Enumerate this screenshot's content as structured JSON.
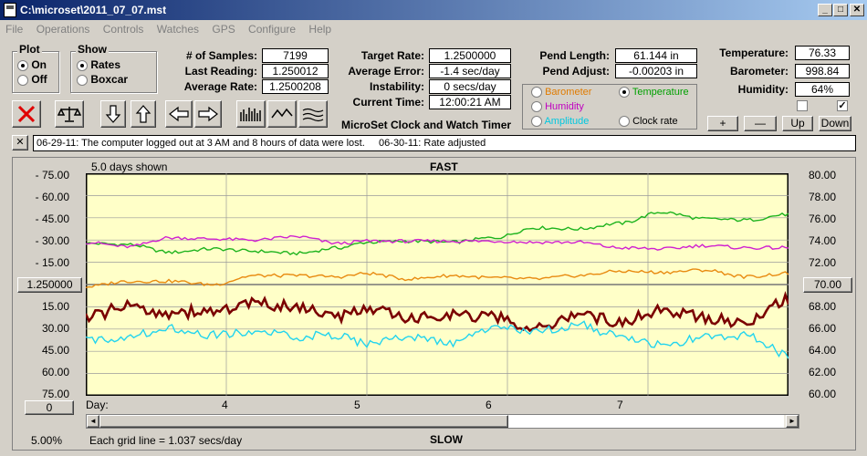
{
  "window": {
    "title": "C:\\microset\\2011_07_07.mst",
    "min_glyph": "_",
    "max_glyph": "□",
    "close_glyph": "✕"
  },
  "menu": [
    "File",
    "Operations",
    "Controls",
    "Watches",
    "GPS",
    "Configure",
    "Help"
  ],
  "plot_group": {
    "title": "Plot",
    "options": [
      "On",
      "Off"
    ],
    "selected": "On"
  },
  "show_group": {
    "title": "Show",
    "options": [
      "Rates",
      "Boxcar"
    ],
    "selected": "Rates"
  },
  "stats": {
    "samples_label": "# of Samples:",
    "samples": "7199",
    "last_reading_label": "Last Reading:",
    "last_reading": "1.250012",
    "average_rate_label": "Average Rate:",
    "average_rate": "1.2500208"
  },
  "rates": {
    "target_rate_label": "Target Rate:",
    "target_rate": "1.2500000",
    "average_error_label": "Average Error:",
    "average_error": "-1.4 sec/day",
    "instability_label": "Instability:",
    "instability": "0 secs/day",
    "current_time_label": "Current Time:",
    "current_time": "12:00:21 AM"
  },
  "program_title": "MicroSet Clock and Watch Timer",
  "pendulum": {
    "length_label": "Pend Length:",
    "length": "61.144 in",
    "adjust_label": "Pend Adjust:",
    "adjust": "-0.00203 in"
  },
  "sensor_options": [
    {
      "label": "Barometer",
      "color": "#e07b00",
      "checked": false
    },
    {
      "label": "Temperature",
      "color": "#00a000",
      "checked": true
    },
    {
      "label": "Humidity",
      "color": "#c000c0",
      "checked": false
    },
    {
      "label": "Amplitude",
      "color": "#00c8e0",
      "checked": false
    },
    {
      "label": "Clock rate",
      "color": "#000000",
      "checked": false
    }
  ],
  "environment": {
    "temperature_label": "Temperature:",
    "temperature": "76.33",
    "barometer_label": "Barometer:",
    "barometer": "998.84",
    "humidity_label": "Humidity:",
    "humidity": "64%"
  },
  "scale_buttons": {
    "plus": "+",
    "minus": "—",
    "up": "Up",
    "down": "Down"
  },
  "notes_close": "✕",
  "notes": "06-29-11: The computer logged out at 3 AM and 8 hours of data were lost.     06-30-11: Rate adjusted",
  "chart_header": {
    "days_shown": "5.0 days shown",
    "fast": "FAST",
    "slow": "SLOW"
  },
  "left_axis_top": [
    "- 75.00",
    "- 60.00",
    "- 45.00",
    "- 30.00",
    "- 15.00"
  ],
  "left_axis_bottom": [
    "15.00",
    "30.00",
    "45.00",
    "60.00",
    "75.00"
  ],
  "center_value_button": "1.250000",
  "zero_button": "0",
  "right_axis": [
    "80.00",
    "78.00",
    "76.00",
    "74.00",
    "72.00",
    "70.00",
    "68.00",
    "66.00",
    "64.00",
    "62.00",
    "60.00"
  ],
  "right_center_button": "70.00",
  "day_axis": {
    "label": "Day:",
    "ticks": [
      "4",
      "5",
      "6",
      "7"
    ]
  },
  "footer": {
    "zoom": "5.00%",
    "grid_note": "Each grid line = 1.037 secs/day"
  },
  "scroll": {
    "left": "◄",
    "right": "►",
    "position": 0.74
  },
  "colors": {
    "plot_bg": "#ffffc8",
    "temperature": "#1db31d",
    "humidity": "#d020d0",
    "barometer": "#e88a10",
    "rate": "#7a0000",
    "amplitude": "#22d4ee",
    "grid": "#9a9a9a"
  },
  "chart_data": {
    "type": "line",
    "x_label": "Day:",
    "x_range": [
      3.0,
      8.0
    ],
    "x_ticks": [
      4,
      5,
      6,
      7
    ],
    "left_axis_range": [
      -75,
      75
    ],
    "left_axis_center_label": "1.250000",
    "right_axis_range": [
      60,
      80
    ],
    "right_axis_center_label": "70.00",
    "series": [
      {
        "name": "Temperature",
        "axis": "right",
        "x": [
          3.0,
          3.3,
          3.6,
          3.9,
          4.2,
          4.5,
          4.8,
          5.0,
          5.3,
          5.6,
          5.9,
          6.2,
          6.5,
          6.8,
          7.1,
          7.4,
          7.7,
          8.0
        ],
        "values": [
          73.7,
          73.6,
          72.9,
          73.2,
          73.0,
          72.8,
          73.3,
          73.8,
          73.9,
          73.8,
          74.2,
          75.1,
          75.0,
          75.5,
          76.5,
          75.9,
          75.8,
          76.3
        ]
      },
      {
        "name": "Humidity",
        "axis": "right",
        "x": [
          3.0,
          3.3,
          3.6,
          3.9,
          4.2,
          4.5,
          4.8,
          5.0,
          5.3,
          5.6,
          5.9,
          6.2,
          6.5,
          6.8,
          7.1,
          7.4,
          7.7,
          8.0
        ],
        "values": [
          73.8,
          73.4,
          74.2,
          74.1,
          74.0,
          74.3,
          73.7,
          73.9,
          73.9,
          73.9,
          73.9,
          73.8,
          73.8,
          73.3,
          73.2,
          73.5,
          73.3,
          73.3
        ]
      },
      {
        "name": "Barometer",
        "axis": "right",
        "x": [
          3.0,
          3.3,
          3.6,
          3.9,
          4.2,
          4.5,
          4.8,
          5.0,
          5.3,
          5.6,
          5.9,
          6.2,
          6.5,
          6.8,
          7.1,
          7.4,
          7.7,
          8.0
        ],
        "values": [
          69.8,
          70.3,
          70.3,
          70.0,
          70.8,
          70.8,
          70.7,
          71.0,
          70.5,
          70.8,
          70.6,
          70.5,
          70.8,
          71.2,
          71.1,
          71.3,
          70.7,
          71.0
        ]
      },
      {
        "name": "Clock rate",
        "axis": "left",
        "x": [
          3.0,
          3.3,
          3.6,
          3.9,
          4.2,
          4.5,
          4.8,
          5.0,
          5.3,
          5.6,
          5.9,
          6.2,
          6.5,
          6.8,
          7.1,
          7.4,
          7.7,
          8.0
        ],
        "values": [
          22,
          15,
          19,
          18,
          13,
          15,
          22,
          16,
          23,
          20,
          22,
          30,
          20,
          25,
          17,
          22,
          26,
          10
        ]
      },
      {
        "name": "Amplitude",
        "axis": "left",
        "x": [
          3.0,
          3.3,
          3.6,
          3.9,
          4.2,
          4.5,
          4.8,
          5.0,
          5.3,
          5.6,
          5.9,
          6.2,
          6.5,
          6.8,
          7.1,
          7.4,
          7.7,
          8.0
        ],
        "values": [
          38,
          35,
          29,
          34,
          32,
          35,
          34,
          40,
          35,
          40,
          29,
          32,
          27,
          35,
          41,
          36,
          34,
          47
        ]
      }
    ]
  }
}
